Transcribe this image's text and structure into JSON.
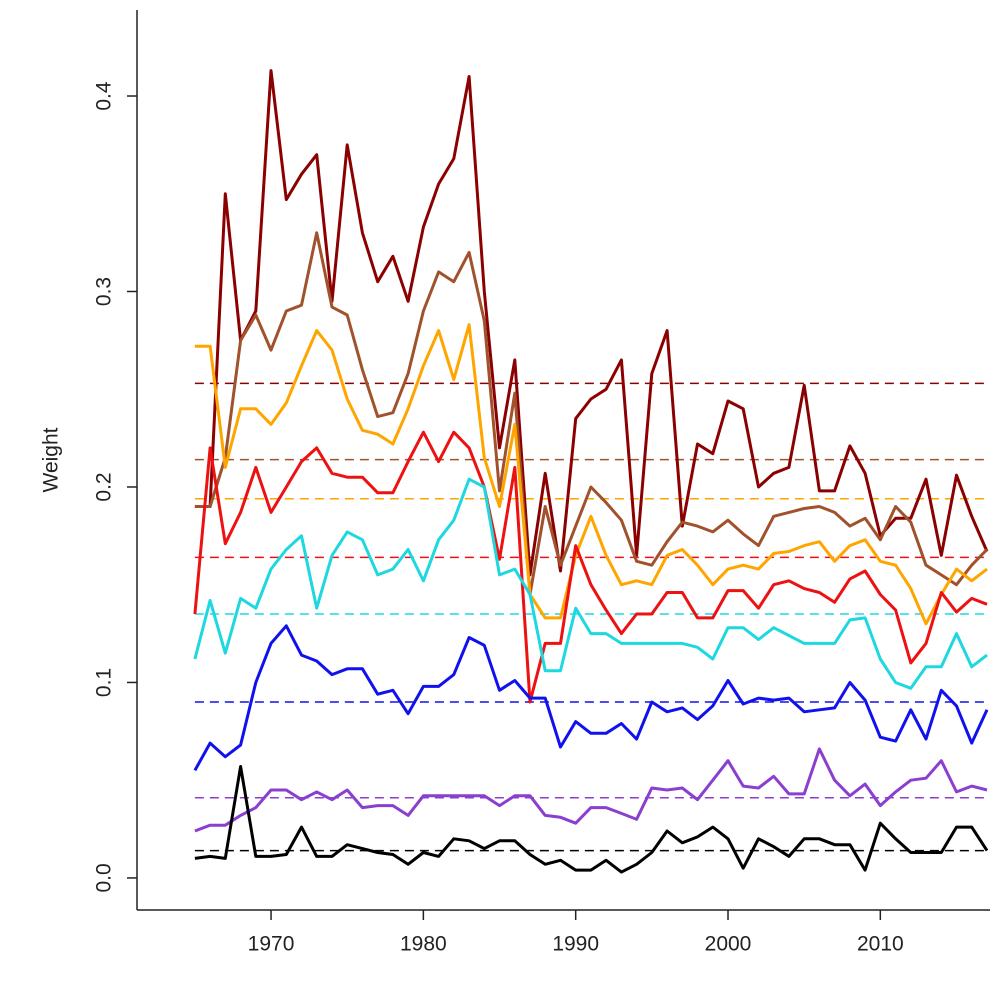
{
  "chart_data": {
    "type": "line",
    "y_label": "Weight",
    "x": [
      1965,
      1966,
      1967,
      1968,
      1969,
      1970,
      1971,
      1972,
      1973,
      1974,
      1975,
      1976,
      1977,
      1978,
      1979,
      1980,
      1981,
      1982,
      1983,
      1984,
      1985,
      1986,
      1987,
      1988,
      1989,
      1990,
      1991,
      1992,
      1993,
      1994,
      1995,
      1996,
      1997,
      1998,
      1999,
      2000,
      2001,
      2002,
      2003,
      2004,
      2005,
      2006,
      2007,
      2008,
      2009,
      2010,
      2011,
      2012,
      2013,
      2014,
      2015,
      2016,
      2017
    ],
    "xlim": [
      1961.2,
      2017.2
    ],
    "xticks": [
      1970,
      1980,
      1990,
      2000,
      2010
    ],
    "ylim": [
      -0.0164,
      0.444
    ],
    "yticks": [
      {
        "value": 0,
        "label": "0.0"
      },
      0.1,
      0.2,
      0.3,
      0.4
    ],
    "series": [
      {
        "color": "#8b0000",
        "mean": 0.253,
        "values": [
          0.19,
          0.19,
          0.35,
          0.275,
          0.29,
          0.413,
          0.347,
          0.36,
          0.37,
          0.295,
          0.375,
          0.33,
          0.305,
          0.318,
          0.295,
          0.333,
          0.355,
          0.368,
          0.41,
          0.3,
          0.22,
          0.265,
          0.155,
          0.207,
          0.157,
          0.235,
          0.245,
          0.25,
          0.265,
          0.165,
          0.258,
          0.28,
          0.18,
          0.222,
          0.217,
          0.244,
          0.24,
          0.2,
          0.207,
          0.21,
          0.252,
          0.198,
          0.198,
          0.221,
          0.207,
          0.175,
          0.184,
          0.184,
          0.204,
          0.165,
          0.206,
          0.185,
          0.167
        ]
      },
      {
        "color": "#a0522d",
        "mean": 0.214,
        "values": [
          0.19,
          0.19,
          0.215,
          0.275,
          0.288,
          0.27,
          0.29,
          0.293,
          0.33,
          0.292,
          0.288,
          0.26,
          0.236,
          0.238,
          0.258,
          0.29,
          0.31,
          0.305,
          0.32,
          0.285,
          0.198,
          0.248,
          0.145,
          0.19,
          0.16,
          0.18,
          0.2,
          0.192,
          0.183,
          0.162,
          0.16,
          0.172,
          0.182,
          0.18,
          0.177,
          0.183,
          0.176,
          0.17,
          0.185,
          0.187,
          0.189,
          0.19,
          0.187,
          0.18,
          0.184,
          0.173,
          0.19,
          0.182,
          0.16,
          0.155,
          0.15,
          0.16,
          0.168
        ]
      },
      {
        "color": "#ffa500",
        "mean": 0.194,
        "values": [
          0.272,
          0.272,
          0.21,
          0.24,
          0.24,
          0.232,
          0.243,
          0.262,
          0.28,
          0.27,
          0.245,
          0.229,
          0.227,
          0.222,
          0.24,
          0.262,
          0.28,
          0.255,
          0.283,
          0.215,
          0.19,
          0.232,
          0.145,
          0.133,
          0.133,
          0.165,
          0.185,
          0.165,
          0.15,
          0.152,
          0.15,
          0.165,
          0.168,
          0.16,
          0.15,
          0.158,
          0.16,
          0.158,
          0.166,
          0.167,
          0.17,
          0.172,
          0.162,
          0.17,
          0.173,
          0.162,
          0.16,
          0.148,
          0.13,
          0.145,
          0.158,
          0.152,
          0.158
        ]
      },
      {
        "color": "#ee1111",
        "mean": 0.164,
        "values": [
          0.135,
          0.22,
          0.171,
          0.187,
          0.21,
          0.187,
          0.2,
          0.213,
          0.22,
          0.207,
          0.205,
          0.205,
          0.197,
          0.197,
          0.213,
          0.228,
          0.213,
          0.228,
          0.22,
          0.2,
          0.163,
          0.21,
          0.09,
          0.12,
          0.12,
          0.17,
          0.15,
          0.137,
          0.125,
          0.135,
          0.135,
          0.146,
          0.146,
          0.133,
          0.133,
          0.147,
          0.147,
          0.138,
          0.15,
          0.152,
          0.148,
          0.146,
          0.141,
          0.153,
          0.157,
          0.145,
          0.137,
          0.11,
          0.12,
          0.146,
          0.136,
          0.143,
          0.14
        ]
      },
      {
        "color": "#1ed8e0",
        "mean": 0.135,
        "values": [
          0.112,
          0.142,
          0.115,
          0.143,
          0.138,
          0.158,
          0.168,
          0.175,
          0.138,
          0.165,
          0.177,
          0.173,
          0.155,
          0.158,
          0.168,
          0.152,
          0.173,
          0.183,
          0.204,
          0.2,
          0.155,
          0.158,
          0.145,
          0.106,
          0.106,
          0.138,
          0.125,
          0.125,
          0.12,
          0.12,
          0.12,
          0.12,
          0.12,
          0.118,
          0.112,
          0.128,
          0.128,
          0.122,
          0.128,
          0.124,
          0.12,
          0.12,
          0.12,
          0.132,
          0.133,
          0.112,
          0.1,
          0.097,
          0.108,
          0.108,
          0.125,
          0.108,
          0.114
        ]
      },
      {
        "color": "#1111ee",
        "mean": 0.09,
        "values": [
          0.055,
          0.069,
          0.062,
          0.068,
          0.1,
          0.12,
          0.129,
          0.114,
          0.111,
          0.104,
          0.107,
          0.107,
          0.094,
          0.096,
          0.084,
          0.098,
          0.098,
          0.104,
          0.123,
          0.119,
          0.096,
          0.101,
          0.092,
          0.092,
          0.067,
          0.08,
          0.074,
          0.074,
          0.079,
          0.071,
          0.09,
          0.085,
          0.087,
          0.081,
          0.088,
          0.101,
          0.089,
          0.092,
          0.091,
          0.092,
          0.085,
          0.086,
          0.087,
          0.1,
          0.091,
          0.072,
          0.07,
          0.086,
          0.071,
          0.096,
          0.088,
          0.069,
          0.086
        ]
      },
      {
        "color": "#8a3fcf",
        "mean": 0.041,
        "values": [
          0.024,
          0.027,
          0.027,
          0.032,
          0.036,
          0.045,
          0.045,
          0.04,
          0.044,
          0.04,
          0.045,
          0.036,
          0.037,
          0.037,
          0.032,
          0.042,
          0.042,
          0.042,
          0.042,
          0.042,
          0.037,
          0.042,
          0.042,
          0.032,
          0.031,
          0.028,
          0.036,
          0.036,
          0.033,
          0.03,
          0.046,
          0.045,
          0.046,
          0.04,
          0.05,
          0.06,
          0.047,
          0.046,
          0.052,
          0.043,
          0.043,
          0.066,
          0.05,
          0.042,
          0.048,
          0.037,
          0.044,
          0.05,
          0.051,
          0.06,
          0.044,
          0.047,
          0.045
        ]
      },
      {
        "color": "#000000",
        "mean": 0.014,
        "values": [
          0.01,
          0.011,
          0.01,
          0.057,
          0.011,
          0.011,
          0.012,
          0.026,
          0.011,
          0.011,
          0.017,
          0.015,
          0.013,
          0.012,
          0.007,
          0.013,
          0.011,
          0.02,
          0.019,
          0.015,
          0.019,
          0.019,
          0.012,
          0.007,
          0.009,
          0.004,
          0.004,
          0.009,
          0.003,
          0.007,
          0.013,
          0.024,
          0.018,
          0.021,
          0.026,
          0.02,
          0.005,
          0.02,
          0.016,
          0.011,
          0.02,
          0.02,
          0.017,
          0.017,
          0.004,
          0.028,
          0.02,
          0.013,
          0.013,
          0.013,
          0.026,
          0.026,
          0.014
        ]
      }
    ]
  }
}
